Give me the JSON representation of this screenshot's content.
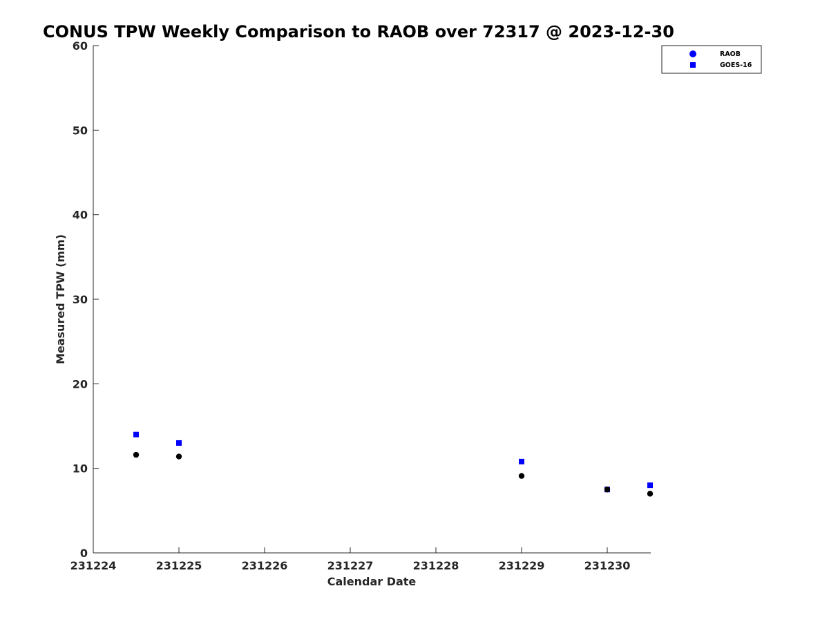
{
  "chart_data": {
    "type": "scatter",
    "title": "CONUS TPW Weekly Comparison to RAOB over 72317 @ 2023-12-30",
    "xlabel": "Calendar Date",
    "ylabel": "Measured TPW (mm)",
    "x_ticks": [
      "231224",
      "231225",
      "231226",
      "231227",
      "231228",
      "231229",
      "231230"
    ],
    "x_domain_days": [
      0,
      6.5
    ],
    "ylim": [
      0,
      60
    ],
    "y_ticks": [
      0,
      10,
      20,
      30,
      40,
      50,
      60
    ],
    "grid": false,
    "legend_position": "top-right",
    "series": [
      {
        "name": "RAOB",
        "marker": "circle",
        "color": "#000000",
        "legend_color": "#0000ff",
        "points": [
          {
            "x": "2023-12-24 12:00",
            "y": 11.6
          },
          {
            "x": "2023-12-25 00:00",
            "y": 11.4
          },
          {
            "x": "2023-12-29 00:00",
            "y": 9.1
          },
          {
            "x": "2023-12-30 00:00",
            "y": 7.5
          },
          {
            "x": "2023-12-30 12:00",
            "y": 7.0
          }
        ]
      },
      {
        "name": "GOES-16",
        "marker": "square",
        "color": "#0000ff",
        "legend_color": "#0000ff",
        "points": [
          {
            "x": "2023-12-24 12:00",
            "y": 14.0
          },
          {
            "x": "2023-12-25 00:00",
            "y": 13.0
          },
          {
            "x": "2023-12-29 00:00",
            "y": 10.8
          },
          {
            "x": "2023-12-30 00:00",
            "y": 7.5
          },
          {
            "x": "2023-12-30 12:00",
            "y": 8.0
          }
        ]
      }
    ]
  }
}
